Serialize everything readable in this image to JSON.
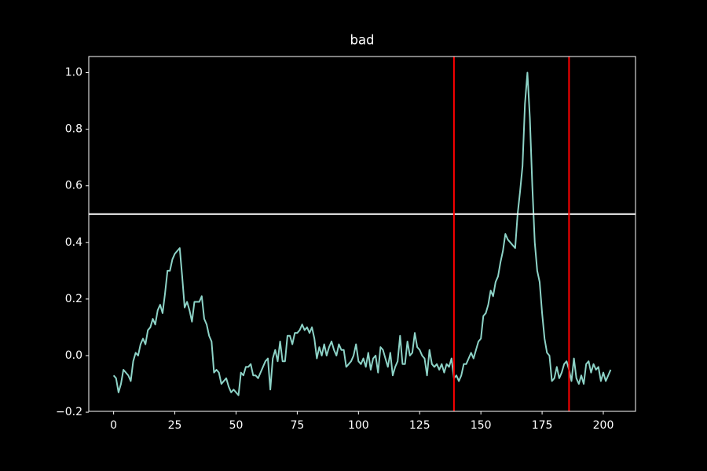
{
  "chart_data": {
    "type": "line",
    "title": "bad",
    "x": [
      0,
      1,
      2,
      3,
      4,
      5,
      6,
      7,
      8,
      9,
      10,
      11,
      12,
      13,
      14,
      15,
      16,
      17,
      18,
      19,
      20,
      21,
      22,
      23,
      24,
      25,
      26,
      27,
      28,
      29,
      30,
      31,
      32,
      33,
      34,
      35,
      36,
      37,
      38,
      39,
      40,
      41,
      42,
      43,
      44,
      45,
      46,
      47,
      48,
      49,
      50,
      51,
      52,
      53,
      54,
      55,
      56,
      57,
      58,
      59,
      60,
      61,
      62,
      63,
      64,
      65,
      66,
      67,
      68,
      69,
      70,
      71,
      72,
      73,
      74,
      75,
      76,
      77,
      78,
      79,
      80,
      81,
      82,
      83,
      84,
      85,
      86,
      87,
      88,
      89,
      90,
      91,
      92,
      93,
      94,
      95,
      96,
      97,
      98,
      99,
      100,
      101,
      102,
      103,
      104,
      105,
      106,
      107,
      108,
      109,
      110,
      111,
      112,
      113,
      114,
      115,
      116,
      117,
      118,
      119,
      120,
      121,
      122,
      123,
      124,
      125,
      126,
      127,
      128,
      129,
      130,
      131,
      132,
      133,
      134,
      135,
      136,
      137,
      138,
      139,
      140,
      141,
      142,
      143,
      144,
      145,
      146,
      147,
      148,
      149,
      150,
      151,
      152,
      153,
      154,
      155,
      156,
      157,
      158,
      159,
      160,
      161,
      162,
      163,
      164,
      165,
      166,
      167,
      168,
      169,
      170,
      171,
      172,
      173,
      174,
      175,
      176,
      177,
      178,
      179,
      180,
      181,
      182,
      183,
      184,
      185,
      186,
      187,
      188,
      189,
      190,
      191,
      192,
      193,
      194,
      195,
      196,
      197,
      198,
      199,
      200,
      201,
      202,
      203
    ],
    "series": [
      {
        "color": "#8dd3c7",
        "values": [
          -0.07,
          -0.08,
          -0.13,
          -0.1,
          -0.05,
          -0.06,
          -0.07,
          -0.09,
          -0.02,
          0.01,
          0.0,
          0.04,
          0.06,
          0.04,
          0.09,
          0.1,
          0.13,
          0.11,
          0.16,
          0.18,
          0.15,
          0.22,
          0.3,
          0.3,
          0.34,
          0.36,
          0.37,
          0.38,
          0.28,
          0.17,
          0.19,
          0.16,
          0.12,
          0.19,
          0.19,
          0.19,
          0.21,
          0.13,
          0.11,
          0.07,
          0.05,
          -0.06,
          -0.05,
          -0.06,
          -0.1,
          -0.09,
          -0.08,
          -0.11,
          -0.13,
          -0.12,
          -0.13,
          -0.14,
          -0.06,
          -0.07,
          -0.04,
          -0.04,
          -0.03,
          -0.07,
          -0.07,
          -0.08,
          -0.06,
          -0.04,
          -0.02,
          -0.01,
          -0.12,
          -0.01,
          0.02,
          -0.02,
          0.05,
          -0.02,
          -0.02,
          0.07,
          0.07,
          0.04,
          0.08,
          0.08,
          0.09,
          0.11,
          0.09,
          0.1,
          0.08,
          0.1,
          0.06,
          -0.01,
          0.03,
          0.0,
          0.04,
          0.0,
          0.03,
          0.05,
          0.02,
          0.0,
          0.04,
          0.02,
          0.02,
          -0.04,
          -0.03,
          -0.02,
          0.0,
          0.04,
          -0.02,
          -0.03,
          -0.01,
          -0.04,
          0.01,
          -0.05,
          -0.01,
          0.0,
          -0.06,
          0.03,
          0.02,
          -0.01,
          -0.04,
          0.01,
          -0.07,
          -0.04,
          -0.02,
          0.07,
          -0.03,
          -0.03,
          0.05,
          0.0,
          0.01,
          0.08,
          0.03,
          0.02,
          0.0,
          -0.01,
          -0.07,
          0.02,
          -0.03,
          -0.04,
          -0.03,
          -0.05,
          -0.03,
          -0.06,
          -0.03,
          -0.04,
          -0.01,
          -0.08,
          -0.07,
          -0.09,
          -0.07,
          -0.03,
          -0.03,
          -0.01,
          0.01,
          -0.01,
          0.02,
          0.05,
          0.06,
          0.14,
          0.15,
          0.18,
          0.23,
          0.21,
          0.26,
          0.28,
          0.33,
          0.37,
          0.43,
          0.41,
          0.4,
          0.39,
          0.38,
          0.5,
          0.58,
          0.67,
          0.89,
          1.0,
          0.84,
          0.6,
          0.4,
          0.3,
          0.26,
          0.15,
          0.06,
          0.01,
          0.0,
          -0.09,
          -0.08,
          -0.04,
          -0.08,
          -0.06,
          -0.03,
          -0.02,
          -0.05,
          -0.09,
          -0.01,
          -0.08,
          -0.1,
          -0.07,
          -0.1,
          -0.03,
          -0.02,
          -0.06,
          -0.03,
          -0.05,
          -0.04,
          -0.09,
          -0.06,
          -0.09,
          -0.07,
          -0.05
        ]
      }
    ],
    "hlines": [
      {
        "value": 0.5,
        "color": "#ffffff"
      }
    ],
    "vlines": [
      {
        "value": 139,
        "color": "#ff0000"
      },
      {
        "value": 186,
        "color": "#ff0000"
      }
    ],
    "xlim": [
      -10.15,
      213.15
    ],
    "xticks": [
      0,
      25,
      50,
      75,
      100,
      125,
      150,
      175,
      200
    ],
    "ylim": [
      -0.197,
      1.057
    ],
    "yticks": [
      {
        "value": -0.2,
        "label": "−0.2"
      },
      {
        "value": 0,
        "label": "0.0"
      },
      {
        "value": 0.2,
        "label": "0.2"
      },
      {
        "value": 0.4,
        "label": "0.4"
      },
      {
        "value": 0.6,
        "label": "0.6"
      },
      {
        "value": 0.8,
        "label": "0.8"
      },
      {
        "value": 1.0,
        "label": "1.0"
      }
    ],
    "grid": false
  }
}
